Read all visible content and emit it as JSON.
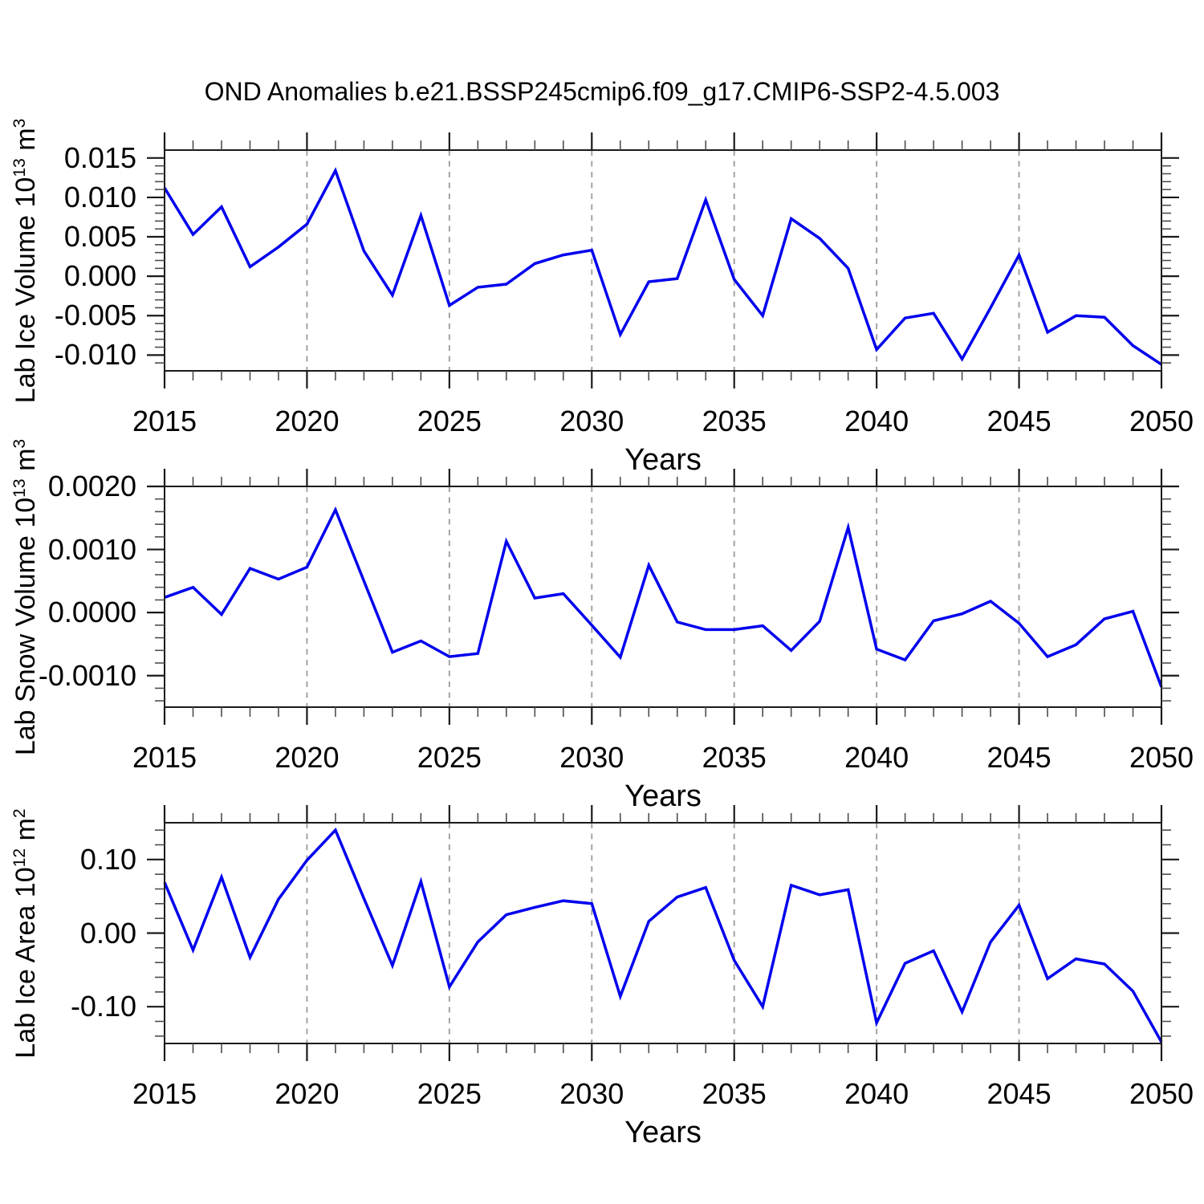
{
  "title": "OND Anomalies b.e21.BSSP245cmip6.f09_g17.CMIP6-SSP2-4.5.003",
  "colors": {
    "line": "#0000EE",
    "grid": "#A3A3A3",
    "frame": "#1A1A1A",
    "minor_tick": "#4D4D4D",
    "text": "#000000",
    "background": "#FFFFFF"
  },
  "years": [
    2015,
    2016,
    2017,
    2018,
    2019,
    2020,
    2021,
    2022,
    2023,
    2024,
    2025,
    2026,
    2027,
    2028,
    2029,
    2030,
    2031,
    2032,
    2033,
    2034,
    2035,
    2036,
    2037,
    2038,
    2039,
    2040,
    2041,
    2042,
    2043,
    2044,
    2045,
    2046,
    2047,
    2048,
    2049,
    2050
  ],
  "x_axis": {
    "label": "Years",
    "range": [
      2015,
      2050
    ],
    "major_tick_years": [
      2015,
      2020,
      2025,
      2030,
      2035,
      2040,
      2045,
      2050
    ],
    "major_tick_labels": [
      "2015",
      "2020",
      "2025",
      "2030",
      "2035",
      "2040",
      "2045",
      "2050"
    ],
    "minor_step_years": 1,
    "gridline_years": [
      2020,
      2025,
      2030,
      2035,
      2040,
      2045
    ],
    "grid_style": "dashed"
  },
  "chart_data": [
    {
      "type": "line",
      "name": "lab-ice-volume",
      "ylabel_text": "Lab Ice Volume 10^13 m^3",
      "ylabel_parts": {
        "prefix": "Lab Ice Volume 10",
        "exp": "13",
        "unit_prefix": " m",
        "unit_exp": "3"
      },
      "xlabel": "Years",
      "ylim": [
        -0.012,
        0.016
      ],
      "ytick_values": [
        0.015,
        0.01,
        0.005,
        0.0,
        -0.005,
        -0.01
      ],
      "ytick_labels": [
        "0.015",
        "0.010",
        "0.005",
        "0.000",
        "-0.005",
        "-0.010"
      ],
      "yminor_step": 0.001,
      "values": [
        0.0112,
        0.0053,
        0.0088,
        0.0012,
        0.0037,
        0.0066,
        0.0134,
        0.0032,
        -0.0024,
        0.0077,
        -0.0037,
        -0.0014,
        -0.001,
        0.0016,
        0.0027,
        0.0033,
        -0.0074,
        -0.0007,
        -0.0003,
        0.0097,
        -0.0004,
        -0.005,
        0.0073,
        0.0048,
        0.001,
        -0.0093,
        -0.0053,
        -0.0047,
        -0.0105,
        -0.004,
        0.0027,
        -0.0071,
        -0.005,
        -0.0052,
        -0.0088,
        -0.0112
      ]
    },
    {
      "type": "line",
      "name": "lab-snow-volume",
      "ylabel_text": "Lab Snow Volume 10^13 m^3",
      "ylabel_parts": {
        "prefix": "Lab Snow Volume 10",
        "exp": "13",
        "unit_prefix": " m",
        "unit_exp": "3"
      },
      "xlabel": "Years",
      "ylim": [
        -0.0015,
        0.002
      ],
      "ytick_values": [
        0.002,
        0.001,
        0.0,
        -0.001
      ],
      "ytick_labels": [
        "0.0020",
        "0.0010",
        "0.0000",
        "-0.0010"
      ],
      "yminor_step": 0.0002,
      "values": [
        0.00024,
        0.0004,
        -3e-05,
        0.0007,
        0.00053,
        0.00072,
        0.00163,
        0.0005,
        -0.00063,
        -0.00045,
        -0.0007,
        -0.00065,
        0.00113,
        0.00023,
        0.0003,
        -0.0002,
        -0.00071,
        0.00075,
        -0.00015,
        -0.00027,
        -0.00027,
        -0.00021,
        -0.0006,
        -0.00014,
        0.00135,
        -0.00058,
        -0.00075,
        -0.00013,
        -2e-05,
        0.00018,
        -0.00017,
        -0.0007,
        -0.00051,
        -0.0001,
        2e-05,
        -0.00118
      ]
    },
    {
      "type": "line",
      "name": "lab-ice-area",
      "ylabel_text": "Lab Ice Area 10^12 m^2",
      "ylabel_parts": {
        "prefix": "Lab Ice Area 10",
        "exp": "12",
        "unit_prefix": " m",
        "unit_exp": "2"
      },
      "xlabel": "Years",
      "ylim": [
        -0.15,
        0.15
      ],
      "ytick_values": [
        0.1,
        0.0,
        -0.1
      ],
      "ytick_labels": [
        "0.10",
        "0.00",
        "-0.10"
      ],
      "yminor_step": 0.02,
      "values": [
        0.069,
        -0.023,
        0.076,
        -0.033,
        0.046,
        0.099,
        0.14,
        0.047,
        -0.044,
        0.07,
        -0.073,
        -0.012,
        0.025,
        0.035,
        0.044,
        0.04,
        -0.086,
        0.016,
        0.049,
        0.062,
        -0.037,
        -0.1,
        0.065,
        0.052,
        0.059,
        -0.122,
        -0.041,
        -0.024,
        -0.107,
        -0.012,
        0.038,
        -0.062,
        -0.035,
        -0.042,
        -0.079,
        -0.148
      ]
    }
  ]
}
